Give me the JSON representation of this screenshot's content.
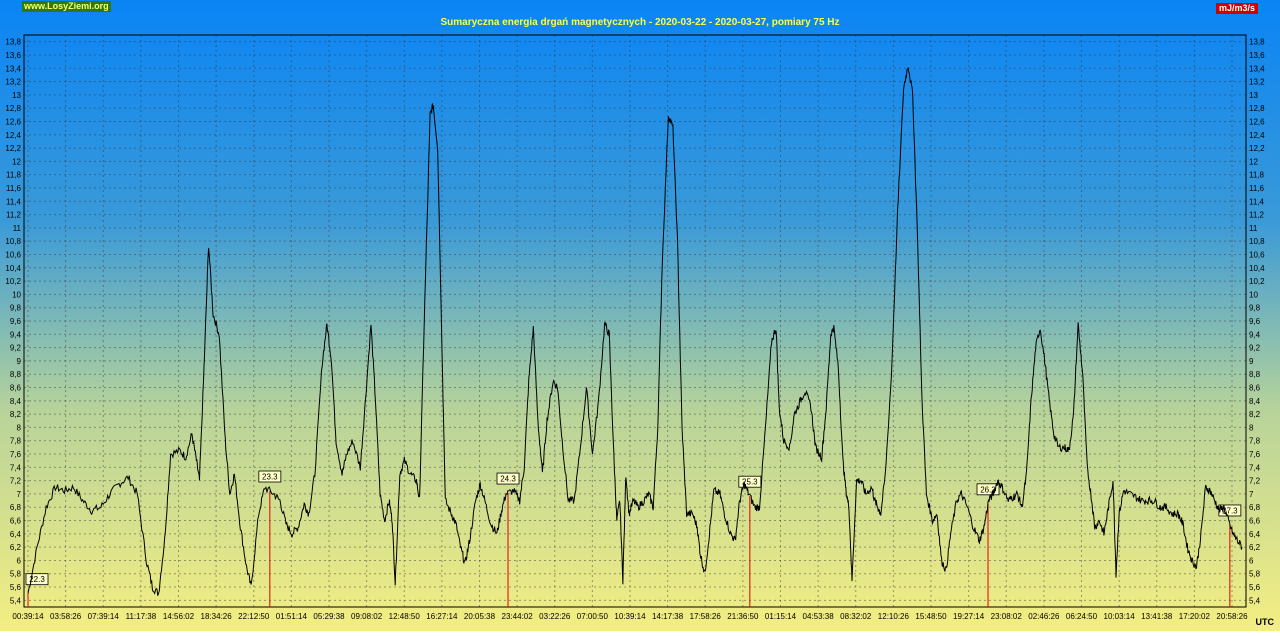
{
  "site": "www.LosyZiemi.org",
  "unit": "mJ/m3/s",
  "corner_label": "UTC",
  "chart_data": {
    "type": "line",
    "title": "Sumaryczna energia drgań magnetycznych - 2020-03-22 - 2020-03-27, pomiary 75 Hz",
    "ylim": [
      5.3,
      13.9
    ],
    "y_ticks": [
      "5,4",
      "5,6",
      "5,8",
      "6",
      "6,2",
      "6,4",
      "6,6",
      "6,8",
      "7",
      "7,2",
      "7,4",
      "7,6",
      "7,8",
      "8",
      "8,2",
      "8,4",
      "8,6",
      "8,8",
      "9",
      "9,2",
      "9,4",
      "9,6",
      "9,8",
      "10",
      "10,2",
      "10,4",
      "10,6",
      "10,8",
      "11",
      "11,2",
      "11,4",
      "11,6",
      "11,8",
      "12",
      "12,2",
      "12,4",
      "12,6",
      "12,8",
      "13",
      "13,2",
      "13,4",
      "13,6",
      "13,8"
    ],
    "x_ticks": [
      "00:39:14",
      "03:58:26",
      "07:39:14",
      "11:17:38",
      "14:56:02",
      "18:34:26",
      "22:12:50",
      "01:51:14",
      "05:29:38",
      "09:08:02",
      "12:48:50",
      "16:27:14",
      "20:05:38",
      "23:44:02",
      "03:22:26",
      "07:00:50",
      "10:39:14",
      "14:17:38",
      "17:58:26",
      "21:36:50",
      "01:15:14",
      "04:53:38",
      "08:32:02",
      "12:10:26",
      "15:48:50",
      "19:27:14",
      "23:08:02",
      "02:46:26",
      "06:24:50",
      "10:03:14",
      "13:41:38",
      "17:20:02",
      "20:58:26"
    ],
    "day_markers": [
      {
        "label": "22.3",
        "index": 0
      },
      {
        "label": "23.3",
        "index": 6.6
      },
      {
        "label": "24.3",
        "index": 13.1
      },
      {
        "label": "25.3",
        "index": 19.7
      },
      {
        "label": "26.3",
        "index": 26.2
      },
      {
        "label": "27.3",
        "index": 32.8
      }
    ],
    "series": [
      {
        "values": [
          [
            0,
            5.5
          ],
          [
            0.3,
            6.2
          ],
          [
            0.6,
            6.8
          ],
          [
            0.9,
            7.1
          ],
          [
            1.2,
            7.05
          ],
          [
            1.5,
            7.1
          ],
          [
            1.8,
            6.9
          ],
          [
            2.1,
            6.75
          ],
          [
            2.4,
            6.8
          ],
          [
            2.7,
            7.0
          ],
          [
            3.0,
            7.15
          ],
          [
            3.3,
            7.25
          ],
          [
            3.6,
            7.0
          ],
          [
            3.9,
            6.0
          ],
          [
            4.1,
            5.6
          ],
          [
            4.3,
            5.5
          ],
          [
            4.5,
            6.3
          ],
          [
            4.7,
            7.6
          ],
          [
            5.0,
            7.65
          ],
          [
            5.2,
            7.55
          ],
          [
            5.4,
            7.9
          ],
          [
            5.55,
            7.5
          ],
          [
            5.65,
            7.2
          ],
          [
            5.8,
            8.9
          ],
          [
            5.95,
            10.75
          ],
          [
            6.1,
            9.7
          ],
          [
            6.3,
            9.4
          ],
          [
            6.5,
            7.8
          ],
          [
            6.65,
            7.0
          ],
          [
            6.8,
            7.3
          ],
          [
            7.0,
            6.5
          ],
          [
            7.2,
            5.9
          ],
          [
            7.35,
            5.6
          ],
          [
            7.6,
            6.7
          ],
          [
            7.8,
            7.1
          ],
          [
            8.1,
            7.0
          ],
          [
            8.3,
            6.9
          ],
          [
            8.5,
            6.55
          ],
          [
            8.7,
            6.4
          ],
          [
            8.9,
            6.5
          ],
          [
            9.1,
            6.85
          ],
          [
            9.25,
            6.7
          ],
          [
            9.45,
            7.3
          ],
          [
            9.7,
            9.0
          ],
          [
            9.85,
            9.55
          ],
          [
            10.0,
            9.0
          ],
          [
            10.15,
            7.8
          ],
          [
            10.35,
            7.3
          ],
          [
            10.5,
            7.6
          ],
          [
            10.7,
            7.8
          ],
          [
            10.95,
            7.4
          ],
          [
            11.1,
            8.3
          ],
          [
            11.3,
            9.55
          ],
          [
            11.45,
            8.4
          ],
          [
            11.6,
            7.0
          ],
          [
            11.75,
            6.6
          ],
          [
            11.9,
            6.9
          ],
          [
            12.0,
            6.6
          ],
          [
            12.1,
            5.65
          ],
          [
            12.25,
            7.3
          ],
          [
            12.4,
            7.5
          ],
          [
            12.6,
            7.3
          ],
          [
            12.8,
            7.2
          ],
          [
            12.9,
            6.9
          ],
          [
            13.05,
            9.5
          ],
          [
            13.25,
            12.7
          ],
          [
            13.35,
            12.85
          ],
          [
            13.5,
            12.2
          ],
          [
            13.65,
            9.0
          ],
          [
            13.75,
            6.9
          ],
          [
            13.95,
            6.7
          ],
          [
            14.1,
            6.55
          ],
          [
            14.25,
            6.2
          ],
          [
            14.4,
            5.95
          ],
          [
            14.55,
            6.3
          ],
          [
            14.75,
            6.9
          ],
          [
            14.9,
            7.15
          ],
          [
            15.05,
            6.9
          ],
          [
            15.25,
            6.55
          ],
          [
            15.45,
            6.4
          ],
          [
            15.6,
            6.75
          ],
          [
            15.75,
            7.0
          ],
          [
            16.0,
            7.05
          ],
          [
            16.2,
            6.9
          ],
          [
            16.35,
            7.4
          ],
          [
            16.5,
            8.7
          ],
          [
            16.65,
            9.5
          ],
          [
            16.8,
            8.1
          ],
          [
            16.95,
            7.3
          ],
          [
            17.1,
            8.1
          ],
          [
            17.3,
            8.7
          ],
          [
            17.45,
            8.6
          ],
          [
            17.6,
            7.8
          ],
          [
            17.8,
            6.9
          ],
          [
            18.0,
            6.9
          ],
          [
            18.2,
            7.7
          ],
          [
            18.4,
            8.6
          ],
          [
            18.6,
            7.6
          ],
          [
            18.8,
            8.4
          ],
          [
            19.0,
            9.55
          ],
          [
            19.15,
            9.4
          ],
          [
            19.3,
            7.6
          ],
          [
            19.4,
            6.6
          ],
          [
            19.5,
            6.9
          ],
          [
            19.6,
            5.7
          ],
          [
            19.7,
            7.3
          ],
          [
            19.8,
            6.7
          ],
          [
            19.95,
            6.9
          ],
          [
            20.1,
            6.8
          ],
          [
            20.3,
            6.9
          ],
          [
            20.45,
            7.0
          ],
          [
            20.6,
            6.8
          ],
          [
            20.75,
            8.0
          ],
          [
            20.9,
            10.5
          ],
          [
            21.1,
            12.7
          ],
          [
            21.25,
            12.5
          ],
          [
            21.4,
            10.8
          ],
          [
            21.55,
            8.0
          ],
          [
            21.7,
            6.7
          ],
          [
            21.9,
            6.7
          ],
          [
            22.05,
            6.5
          ],
          [
            22.15,
            6.1
          ],
          [
            22.3,
            5.8
          ],
          [
            22.45,
            6.4
          ],
          [
            22.6,
            7.05
          ],
          [
            22.8,
            7.0
          ],
          [
            22.95,
            6.7
          ],
          [
            23.15,
            6.4
          ],
          [
            23.3,
            6.3
          ],
          [
            23.45,
            6.9
          ],
          [
            23.6,
            7.15
          ],
          [
            23.75,
            7.0
          ],
          [
            23.95,
            6.8
          ],
          [
            24.1,
            6.8
          ],
          [
            24.3,
            8.0
          ],
          [
            24.5,
            9.3
          ],
          [
            24.65,
            9.5
          ],
          [
            24.75,
            8.3
          ],
          [
            24.9,
            7.8
          ],
          [
            25.1,
            7.7
          ],
          [
            25.25,
            8.2
          ],
          [
            25.45,
            8.4
          ],
          [
            25.6,
            8.55
          ],
          [
            25.8,
            8.3
          ],
          [
            25.95,
            7.7
          ],
          [
            26.15,
            7.55
          ],
          [
            26.3,
            8.3
          ],
          [
            26.45,
            9.4
          ],
          [
            26.55,
            9.5
          ],
          [
            26.7,
            8.9
          ],
          [
            26.85,
            7.5
          ],
          [
            26.95,
            7.05
          ],
          [
            27.05,
            6.8
          ],
          [
            27.15,
            5.7
          ],
          [
            27.3,
            7.2
          ],
          [
            27.45,
            7.2
          ],
          [
            27.6,
            7.0
          ],
          [
            27.8,
            7.1
          ],
          [
            27.9,
            6.9
          ],
          [
            28.0,
            6.8
          ],
          [
            28.1,
            6.7
          ],
          [
            28.25,
            7.3
          ],
          [
            28.45,
            8.8
          ],
          [
            28.65,
            11.2
          ],
          [
            28.85,
            13.1
          ],
          [
            29.0,
            13.45
          ],
          [
            29.15,
            13.0
          ],
          [
            29.3,
            11.0
          ],
          [
            29.45,
            8.5
          ],
          [
            29.6,
            7.0
          ],
          [
            29.8,
            6.6
          ],
          [
            29.95,
            6.7
          ],
          [
            30.1,
            6.0
          ],
          [
            30.25,
            5.85
          ],
          [
            30.4,
            6.4
          ],
          [
            30.6,
            6.9
          ],
          [
            30.75,
            7.0
          ],
          [
            30.95,
            6.8
          ],
          [
            31.15,
            6.5
          ],
          [
            31.35,
            6.3
          ],
          [
            31.5,
            6.5
          ],
          [
            31.65,
            6.9
          ],
          [
            31.8,
            7.0
          ],
          [
            31.95,
            7.2
          ],
          [
            32.1,
            7.1
          ],
          [
            32.3,
            6.9
          ],
          [
            32.45,
            6.95
          ],
          [
            32.6,
            7.0
          ],
          [
            32.75,
            6.8
          ],
          [
            32.9,
            7.3
          ],
          [
            33.05,
            8.4
          ],
          [
            33.2,
            9.2
          ],
          [
            33.35,
            9.5
          ],
          [
            33.5,
            9.0
          ],
          [
            33.65,
            8.4
          ],
          [
            33.8,
            7.9
          ],
          [
            33.95,
            7.7
          ],
          [
            34.15,
            7.7
          ],
          [
            34.3,
            7.65
          ],
          [
            34.45,
            8.2
          ],
          [
            34.6,
            9.55
          ],
          [
            34.75,
            8.8
          ],
          [
            34.9,
            7.4
          ],
          [
            35.05,
            6.9
          ],
          [
            35.15,
            6.5
          ],
          [
            35.3,
            6.6
          ],
          [
            35.45,
            6.4
          ],
          [
            35.6,
            6.8
          ],
          [
            35.75,
            7.2
          ],
          [
            35.85,
            5.8
          ],
          [
            35.95,
            6.7
          ],
          [
            36.1,
            7.05
          ],
          [
            36.3,
            7.0
          ],
          [
            36.5,
            6.95
          ],
          [
            36.7,
            6.9
          ],
          [
            36.9,
            6.9
          ],
          [
            37.1,
            6.9
          ],
          [
            37.3,
            6.8
          ],
          [
            37.5,
            6.8
          ],
          [
            37.7,
            6.7
          ],
          [
            37.9,
            6.7
          ],
          [
            38.05,
            6.55
          ],
          [
            38.2,
            6.2
          ],
          [
            38.35,
            6.0
          ],
          [
            38.5,
            5.9
          ],
          [
            38.65,
            6.4
          ],
          [
            38.8,
            7.1
          ],
          [
            38.95,
            7.05
          ],
          [
            39.1,
            6.9
          ],
          [
            39.25,
            6.75
          ],
          [
            39.4,
            6.8
          ],
          [
            39.55,
            6.6
          ],
          [
            39.7,
            6.4
          ],
          [
            39.85,
            6.3
          ],
          [
            40.0,
            6.2
          ]
        ]
      }
    ]
  }
}
